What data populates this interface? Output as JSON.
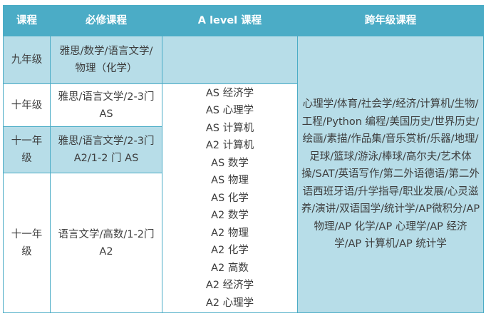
{
  "colors": {
    "header": "#4bacc6",
    "light_row": "#b7dde8",
    "text": "#3d3d3d"
  },
  "headers": [
    "课程",
    "必修课程",
    "A level 课程",
    "跨年级课程"
  ],
  "rows": [
    {
      "grade": "九年级",
      "required": "雅思/数学/语言文学/物理（化学）"
    },
    {
      "grade": "十年级",
      "required": "雅思/语言文学/2-3门 AS"
    },
    {
      "grade": "十一年级",
      "required": "雅思/语言文学/2-3门 A2/1-2 门 AS"
    },
    {
      "grade": "十一年级",
      "required": "语言文学/高数/1-2门 A2"
    }
  ],
  "alevel_courses": [
    "AS 经济学",
    "AS 心理学",
    "AS 计算机",
    "A2 计算机",
    "AS 数学",
    "AS 物理",
    "AS 化学",
    "A2 数学",
    "A2 物理",
    "A2 化学",
    "A2 高数",
    "A2 经济学",
    "A2 心理学"
  ],
  "cross_grade": "心理学/体育/社会学/经济/计算机/生物/工程/Python 编程/美国历史/世界历史/绘画/素描/作品集/音乐赏析/乐器/地理/足球/篮球/游泳/棒球/高尔夫/艺术体操/SAT/英语写作/第二外语德语/第二外语西班牙语/升学指导/职业发展/心灵滋养/演讲/双语国学/统计学/AP微积分/AP 物理/AP 化学/AP 心理学/AP 经济学/AP 计算机/AP 统计学"
}
